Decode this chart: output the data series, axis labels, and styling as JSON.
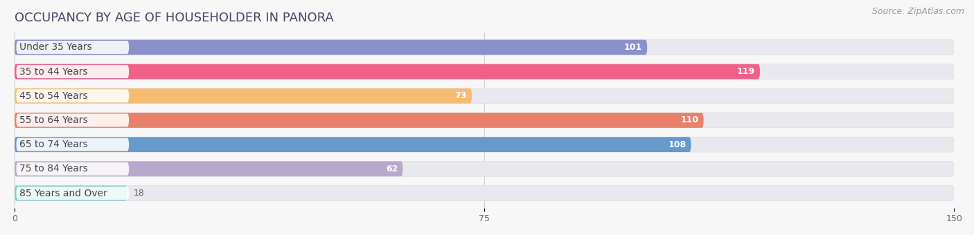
{
  "title": "OCCUPANCY BY AGE OF HOUSEHOLDER IN PANORA",
  "source": "Source: ZipAtlas.com",
  "categories": [
    "Under 35 Years",
    "35 to 44 Years",
    "45 to 54 Years",
    "55 to 64 Years",
    "65 to 74 Years",
    "75 to 84 Years",
    "85 Years and Over"
  ],
  "values": [
    101,
    119,
    73,
    110,
    108,
    62,
    18
  ],
  "bar_colors": [
    "#8b8fcc",
    "#f0608a",
    "#f5bc72",
    "#e8806a",
    "#6699cc",
    "#b8a8cc",
    "#80cccc"
  ],
  "xlim_min": 0,
  "xlim_max": 150,
  "xticks": [
    0,
    75,
    150
  ],
  "background_color": "#f7f7f7",
  "bar_track_color": "#e8e8ee",
  "title_fontsize": 13,
  "source_fontsize": 9,
  "label_fontsize": 10,
  "value_fontsize": 9,
  "label_text_color": "#444444",
  "value_color_inside": "#ffffff",
  "value_color_outside": "#666666"
}
